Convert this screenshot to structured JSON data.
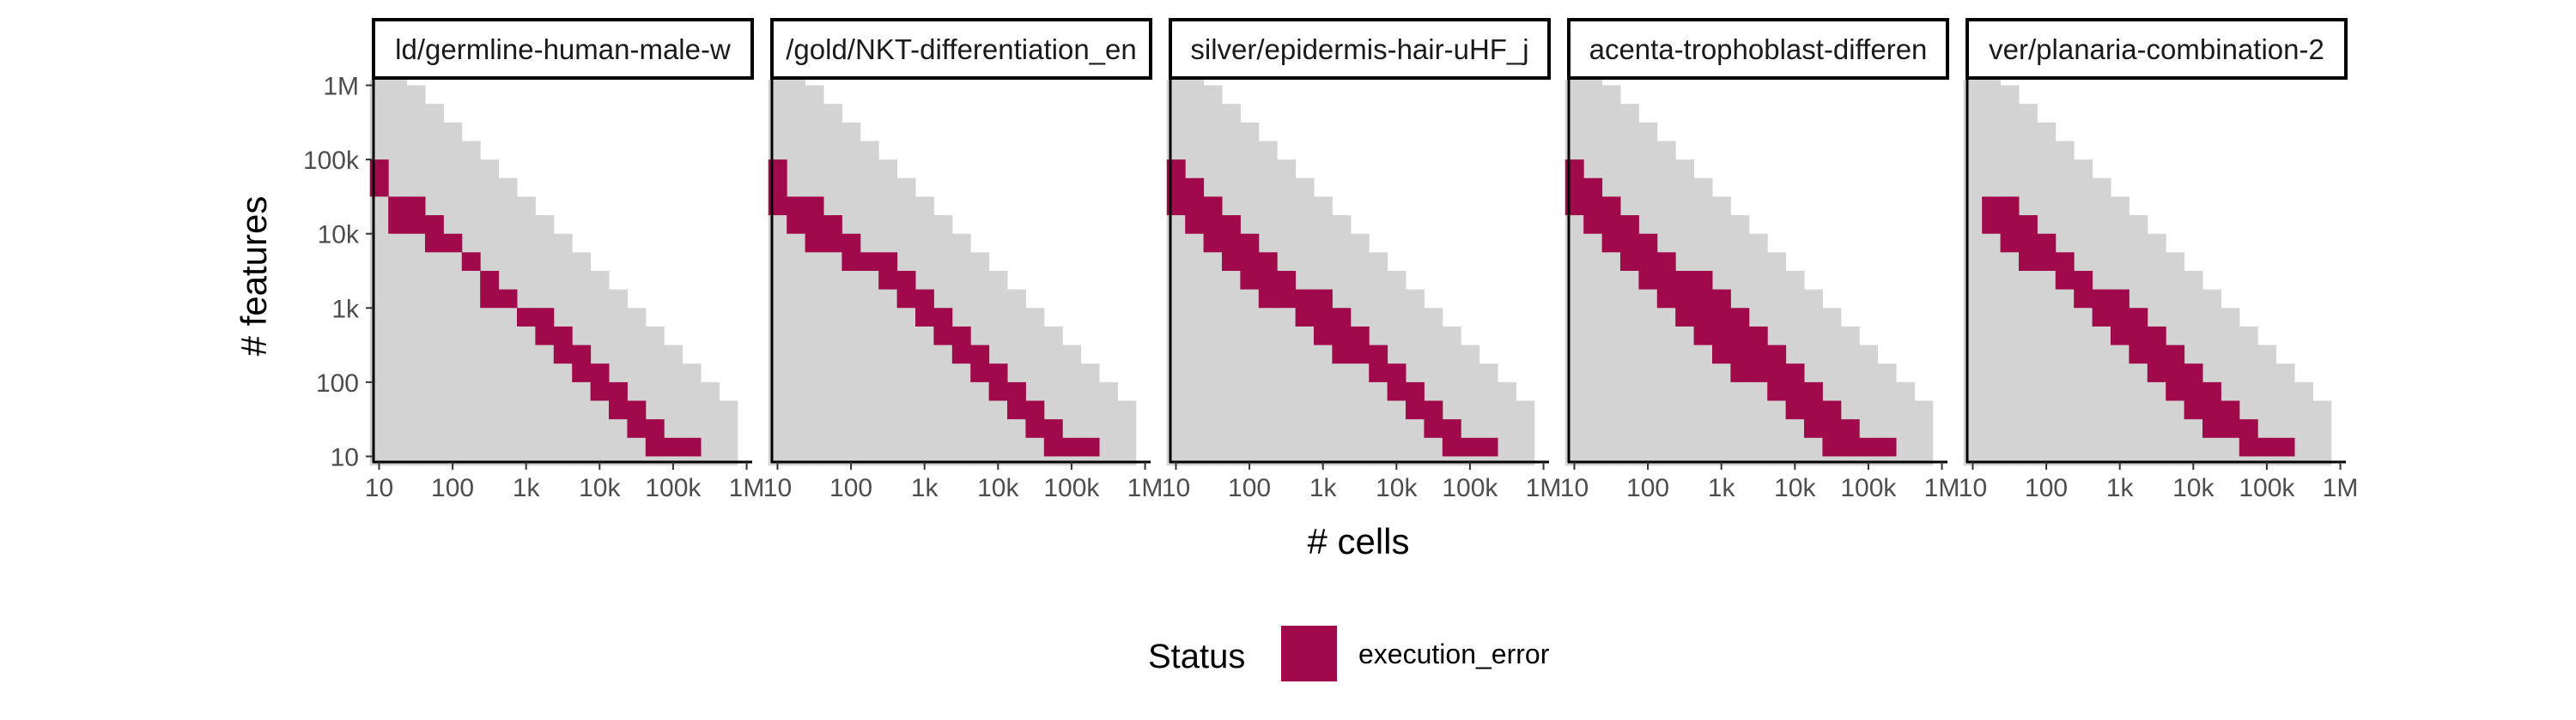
{
  "chart_data": {
    "type": "heatmap",
    "xlabel": "# cells",
    "ylabel": "# features",
    "x_scale": "log10",
    "y_scale": "log10",
    "x_ticks": [
      {
        "value": 10,
        "label": "10"
      },
      {
        "value": 100,
        "label": "100"
      },
      {
        "value": 1000,
        "label": "1k"
      },
      {
        "value": 10000,
        "label": "10k"
      },
      {
        "value": 100000,
        "label": "100k"
      },
      {
        "value": 1000000,
        "label": "1M"
      }
    ],
    "y_ticks": [
      {
        "value": 10,
        "label": "10"
      },
      {
        "value": 100,
        "label": "100"
      },
      {
        "value": 1000,
        "label": "1k"
      },
      {
        "value": 10000,
        "label": "10k"
      },
      {
        "value": 100000,
        "label": "100k"
      },
      {
        "value": 1000000,
        "label": "1M"
      }
    ],
    "xlim": [
      8.4,
      1190000
    ],
    "ylim": [
      8.4,
      1190000
    ],
    "grid_bins_per_decade": 4,
    "x_bins_log10": [
      1,
      1.25,
      1.5,
      1.75,
      2,
      2.25,
      2.5,
      2.75,
      3,
      3.25,
      3.5,
      3.75,
      4,
      4.25,
      4.5,
      4.75,
      5,
      5.25,
      5.5,
      5.75
    ],
    "background_color": "#d3d3d3",
    "background_coverage": "dataset sizes with cells x features up to about 1e7",
    "legend": {
      "title": "Status",
      "position": "bottom",
      "items": [
        {
          "label": "execution_error",
          "color": "#a10a4a"
        }
      ]
    },
    "panels": [
      {
        "label": "ld/germline-human-male-w",
        "series": [
          {
            "name": "execution_error",
            "y_ranges_log10": [
              [
                4.5,
                5
              ],
              [
                4,
                4.5
              ],
              [
                4,
                4.5
              ],
              [
                3.75,
                4.25
              ],
              [
                3.75,
                4
              ],
              [
                3.5,
                3.75
              ],
              [
                3,
                3.5
              ],
              [
                3,
                3.25
              ],
              [
                2.75,
                3
              ],
              [
                2.5,
                3
              ],
              [
                2.25,
                2.75
              ],
              [
                2,
                2.5
              ],
              [
                1.75,
                2.25
              ],
              [
                1.5,
                2
              ],
              [
                1.25,
                1.75
              ],
              [
                1,
                1.5
              ],
              [
                1,
                1.25
              ],
              [
                1,
                1.25
              ]
            ]
          }
        ]
      },
      {
        "label": "/gold/NKT-differentiation_en",
        "series": [
          {
            "name": "execution_error",
            "y_ranges_log10": [
              [
                4.25,
                5
              ],
              [
                4,
                4.5
              ],
              [
                3.75,
                4.5
              ],
              [
                3.75,
                4.25
              ],
              [
                3.5,
                4
              ],
              [
                3.5,
                3.75
              ],
              [
                3.25,
                3.75
              ],
              [
                3,
                3.5
              ],
              [
                2.75,
                3.25
              ],
              [
                2.5,
                3
              ],
              [
                2.25,
                2.75
              ],
              [
                2,
                2.5
              ],
              [
                1.75,
                2.25
              ],
              [
                1.5,
                2
              ],
              [
                1.25,
                1.75
              ],
              [
                1,
                1.5
              ],
              [
                1,
                1.25
              ],
              [
                1,
                1.25
              ]
            ]
          }
        ]
      },
      {
        "label": "silver/epidermis-hair-uHF_j",
        "series": [
          {
            "name": "execution_error",
            "y_ranges_log10": [
              [
                4.25,
                5
              ],
              [
                4,
                4.75
              ],
              [
                3.75,
                4.5
              ],
              [
                3.5,
                4.25
              ],
              [
                3.25,
                4
              ],
              [
                3,
                3.75
              ],
              [
                3,
                3.5
              ],
              [
                2.75,
                3.25
              ],
              [
                2.5,
                3.25
              ],
              [
                2.25,
                3
              ],
              [
                2.25,
                2.75
              ],
              [
                2,
                2.5
              ],
              [
                1.75,
                2.25
              ],
              [
                1.5,
                2
              ],
              [
                1.25,
                1.75
              ],
              [
                1,
                1.5
              ],
              [
                1,
                1.25
              ],
              [
                1,
                1.25
              ]
            ]
          }
        ]
      },
      {
        "label": "acenta-trophoblast-differen",
        "series": [
          {
            "name": "execution_error",
            "y_ranges_log10": [
              [
                4.25,
                5
              ],
              [
                4,
                4.75
              ],
              [
                3.75,
                4.5
              ],
              [
                3.5,
                4.25
              ],
              [
                3.25,
                4
              ],
              [
                3,
                3.75
              ],
              [
                2.75,
                3.5
              ],
              [
                2.5,
                3.5
              ],
              [
                2.25,
                3.25
              ],
              [
                2,
                3
              ],
              [
                2,
                2.75
              ],
              [
                1.75,
                2.5
              ],
              [
                1.5,
                2.25
              ],
              [
                1.25,
                2
              ],
              [
                1,
                1.75
              ],
              [
                1,
                1.5
              ],
              [
                1,
                1.25
              ],
              [
                1,
                1.25
              ]
            ]
          }
        ]
      },
      {
        "label": "ver/planaria-combination-2",
        "series": [
          {
            "name": "execution_error",
            "y_ranges_log10": [
              null,
              [
                4,
                4.5
              ],
              [
                3.75,
                4.5
              ],
              [
                3.5,
                4.25
              ],
              [
                3.5,
                4
              ],
              [
                3.25,
                3.75
              ],
              [
                3,
                3.5
              ],
              [
                2.75,
                3.25
              ],
              [
                2.5,
                3.25
              ],
              [
                2.25,
                3
              ],
              [
                2,
                2.75
              ],
              [
                1.75,
                2.5
              ],
              [
                1.5,
                2.25
              ],
              [
                1.25,
                2
              ],
              [
                1.25,
                1.75
              ],
              [
                1,
                1.5
              ],
              [
                1,
                1.25
              ],
              [
                1,
                1.25
              ]
            ]
          }
        ]
      }
    ]
  }
}
